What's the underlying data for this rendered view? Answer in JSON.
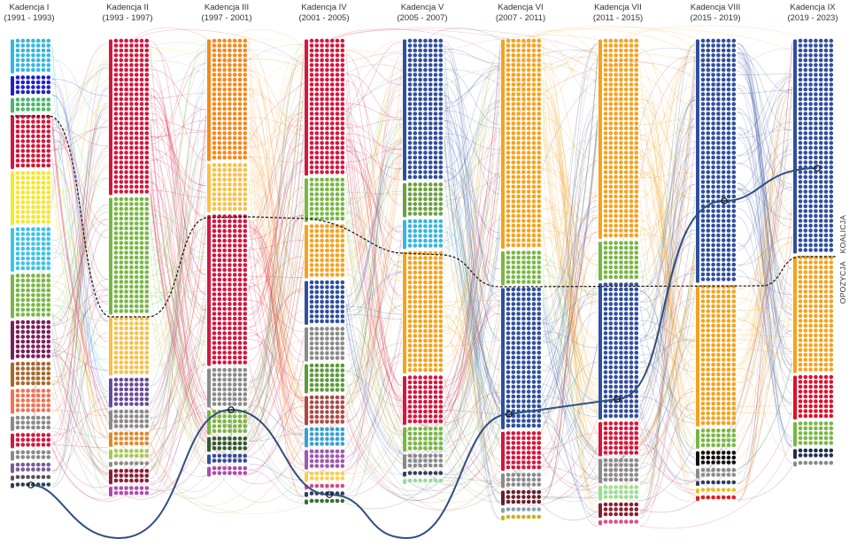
{
  "columns": [
    {
      "title": "Kadencja I",
      "years": "(1991 - 1993)",
      "segments": [
        {
          "color": "#35b6e0",
          "seats": 49
        },
        {
          "color": "#1f22c8",
          "seats": 28
        },
        {
          "color": "#49b86a",
          "seats": 21
        },
        {
          "color": "#d3173f",
          "seats": 77
        },
        {
          "color": "#f7e62a",
          "seats": 77
        },
        {
          "color": "#3cc3ea",
          "seats": 63
        },
        {
          "color": "#77b843",
          "seats": 63
        },
        {
          "color": "#7a1f5b",
          "seats": 56
        },
        {
          "color": "#a8682a",
          "seats": 35
        },
        {
          "color": "#f2714f",
          "seats": 35
        },
        {
          "color": "#8a8a8a",
          "seats": 21
        },
        {
          "color": "#d3173f",
          "seats": 21
        },
        {
          "color": "#8a8a8a",
          "seats": 14
        },
        {
          "color": "#7a5a9a",
          "seats": 14
        },
        {
          "color": "#555",
          "seats": 7
        },
        {
          "color": "#2e3e5c",
          "seats": 7
        }
      ]
    },
    {
      "title": "Kadencja II",
      "years": "(1993 - 1997)",
      "segments": [
        {
          "color": "#d3173f",
          "seats": 224
        },
        {
          "color": "#77b843",
          "seats": 168
        },
        {
          "color": "#f7c04a",
          "seats": 84
        },
        {
          "color": "#6a4a9a",
          "seats": 42
        },
        {
          "color": "#8a8a8a",
          "seats": 28
        },
        {
          "color": "#e08a2a",
          "seats": 21
        },
        {
          "color": "#a7c95a",
          "seats": 14
        },
        {
          "color": "#8a8a8a",
          "seats": 7
        },
        {
          "color": "#8a1f3b",
          "seats": 21
        },
        {
          "color": "#b04ab0",
          "seats": 14
        }
      ]
    },
    {
      "title": "Kadencja III",
      "years": "(1997 - 2001)",
      "segments": [
        {
          "color": "#f5891c",
          "seats": 175
        },
        {
          "color": "#f7c04a",
          "seats": 70
        },
        {
          "color": "#d3173f",
          "seats": 217
        },
        {
          "color": "#8a8a8a",
          "seats": 56
        },
        {
          "color": "#77b843",
          "seats": 35
        },
        {
          "color": "#2f5a2f",
          "seats": 21
        },
        {
          "color": "#2f4f9f",
          "seats": 14
        },
        {
          "color": "#b04ab0",
          "seats": 14
        }
      ]
    },
    {
      "title": "Kadencja IV",
      "years": "(2001 - 2005)",
      "segments": [
        {
          "color": "#d3173f",
          "seats": 196
        },
        {
          "color": "#77b843",
          "seats": 63
        },
        {
          "color": "#f5a21c",
          "seats": 77
        },
        {
          "color": "#2f4f9f",
          "seats": 63
        },
        {
          "color": "#8a8a8a",
          "seats": 49
        },
        {
          "color": "#5a9a3a",
          "seats": 42
        },
        {
          "color": "#a84a4a",
          "seats": 42
        },
        {
          "color": "#35a0d8",
          "seats": 28
        },
        {
          "color": "#9a5ab0",
          "seats": 28
        },
        {
          "color": "#f7d04a",
          "seats": 14
        },
        {
          "color": "#d34a8a",
          "seats": 7
        },
        {
          "color": "#2e3e5c",
          "seats": 7
        },
        {
          "color": "#3c6b35",
          "seats": 7
        }
      ]
    },
    {
      "title": "Kadencja V",
      "years": "(2005 - 2007)",
      "segments": [
        {
          "color": "#2f4f9f",
          "seats": 203
        },
        {
          "color": "#6aa040",
          "seats": 49
        },
        {
          "color": "#35b6e0",
          "seats": 42
        },
        {
          "color": "#f5a21c",
          "seats": 175
        },
        {
          "color": "#d3173f",
          "seats": 70
        },
        {
          "color": "#77b843",
          "seats": 35
        },
        {
          "color": "#8a8a8a",
          "seats": 21
        },
        {
          "color": "#2e3e5c",
          "seats": 7
        },
        {
          "color": "#9ad8a0",
          "seats": 7
        }
      ]
    },
    {
      "title": "Kadencja VI",
      "years": "(2007 - 2011)",
      "segments": [
        {
          "color": "#f5a21c",
          "seats": 301
        },
        {
          "color": "#77b843",
          "seats": 49
        },
        {
          "color": "#2f4f9f",
          "seats": 203
        },
        {
          "color": "#d3173f",
          "seats": 56
        },
        {
          "color": "#8a8a8a",
          "seats": 21
        },
        {
          "color": "#6a1f2b",
          "seats": 21
        },
        {
          "color": "#8aa0b0",
          "seats": 7
        },
        {
          "color": "#c8b020",
          "seats": 7
        }
      ]
    },
    {
      "title": "Kadencja VII",
      "years": "(2011 - 2015)",
      "segments": [
        {
          "color": "#f5a21c",
          "seats": 287
        },
        {
          "color": "#77b843",
          "seats": 56
        },
        {
          "color": "#2f4f9f",
          "seats": 196
        },
        {
          "color": "#d3173f",
          "seats": 49
        },
        {
          "color": "#8a8a8a",
          "seats": 35
        },
        {
          "color": "#9ae08a",
          "seats": 21
        },
        {
          "color": "#8a1f2b",
          "seats": 21
        },
        {
          "color": "#e04a8a",
          "seats": 7
        }
      ]
    },
    {
      "title": "Kadencja VIII",
      "years": "(2015 - 2019)",
      "segments": [
        {
          "color": "#2f4f9f",
          "seats": 350
        },
        {
          "color": "#f5a21c",
          "seats": 203
        },
        {
          "color": "#77b843",
          "seats": 28
        },
        {
          "color": "#111111",
          "seats": 21
        },
        {
          "color": "#8a8a8a",
          "seats": 14
        },
        {
          "color": "#2e3e5c",
          "seats": 7
        },
        {
          "color": "#e8c020",
          "seats": 7
        },
        {
          "color": "#e02020",
          "seats": 7
        }
      ]
    },
    {
      "title": "Kadencja IX",
      "years": "(2019 - 2023)",
      "segments": [
        {
          "color": "#2f4f9f",
          "seats": 308
        },
        {
          "color": "#f5a21c",
          "seats": 168
        },
        {
          "color": "#e0102a",
          "seats": 63
        },
        {
          "color": "#77b843",
          "seats": 35
        },
        {
          "color": "#1f2f4f",
          "seats": 14
        },
        {
          "color": "#8a8a8a",
          "seats": 7
        }
      ]
    }
  ],
  "side_labels": {
    "opposition": "OPOZYCJA",
    "coalition": "KOALICJA"
  },
  "colors": {
    "coalition_line": "#111111",
    "highlight_path": "#2f4f7f"
  }
}
